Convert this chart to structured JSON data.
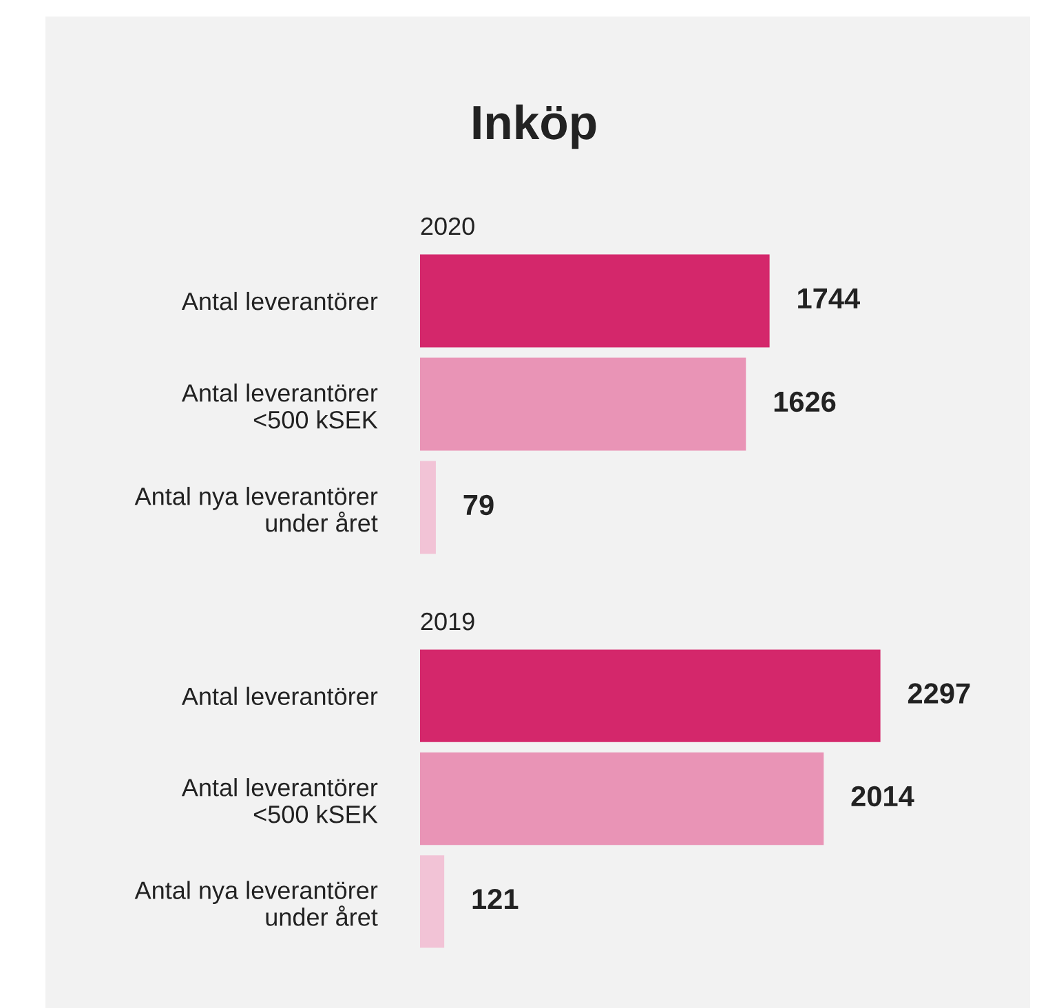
{
  "chart_data": [
    {
      "type": "bar",
      "orientation": "horizontal",
      "title": "Inköp",
      "subtitle": "2020",
      "categories": [
        "Antal leverantörer",
        "Antal leverantörer\n<500 kSEK",
        "Antal nya leverantörer\nunder året"
      ],
      "values": [
        1744,
        1626,
        79
      ],
      "colors": [
        "#d4276b",
        "#e994b6",
        "#f2c3d6"
      ],
      "data_labels": true
    },
    {
      "type": "bar",
      "orientation": "horizontal",
      "subtitle": "2019",
      "categories": [
        "Antal leverantörer",
        "Antal leverantörer\n<500 kSEK",
        "Antal nya leverantörer\nunder året"
      ],
      "values": [
        2297,
        2014,
        121
      ],
      "colors": [
        "#d4276b",
        "#e994b6",
        "#f2c3d6"
      ],
      "data_labels": true
    }
  ]
}
